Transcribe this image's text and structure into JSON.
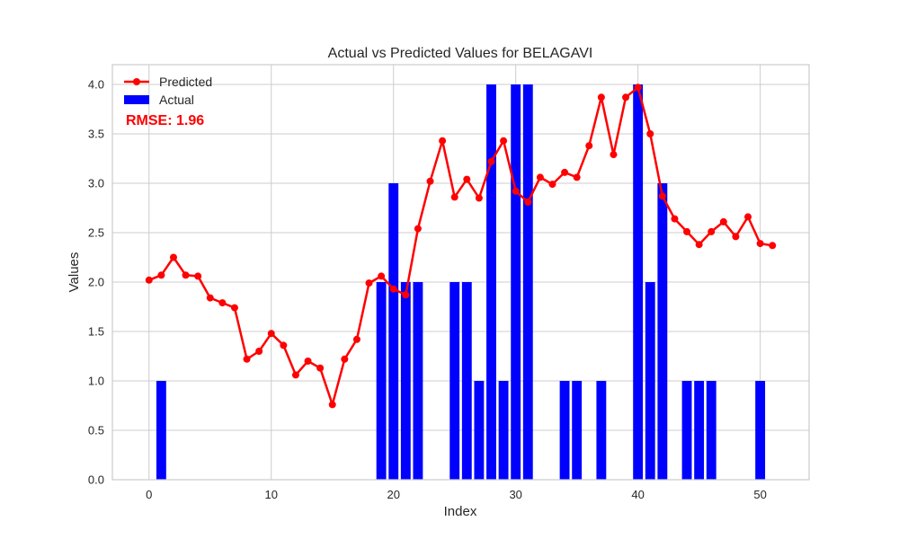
{
  "chart_data": {
    "type": "bar",
    "title": "Actual vs Predicted Values for BELAGAVI",
    "xlabel": "Index",
    "ylabel": "Values",
    "xlim": [
      -3,
      54
    ],
    "ylim": [
      0,
      4.2
    ],
    "xticks": [
      0,
      10,
      20,
      30,
      40,
      50
    ],
    "yticks": [
      0.0,
      0.5,
      1.0,
      1.5,
      2.0,
      2.5,
      3.0,
      3.5,
      4.0
    ],
    "ytick_labels": [
      "0.0",
      "0.5",
      "1.0",
      "1.5",
      "2.0",
      "2.5",
      "3.0",
      "3.5",
      "4.0"
    ],
    "grid": true,
    "legend_position": "top-left",
    "series": [
      {
        "name": "Predicted",
        "kind": "line",
        "color": "#ff0000",
        "marker": "circle",
        "x": [
          0,
          1,
          2,
          3,
          4,
          5,
          6,
          7,
          8,
          9,
          10,
          11,
          12,
          13,
          14,
          15,
          16,
          17,
          18,
          19,
          20,
          21,
          22,
          23,
          24,
          25,
          26,
          27,
          28,
          29,
          30,
          31,
          32,
          33,
          34,
          35,
          36,
          37,
          38,
          39,
          40,
          41,
          42,
          43,
          44,
          45,
          46,
          47,
          48,
          49,
          50,
          51
        ],
        "values": [
          2.02,
          2.07,
          2.25,
          2.07,
          2.06,
          1.84,
          1.79,
          1.74,
          1.22,
          1.3,
          1.48,
          1.36,
          1.06,
          1.2,
          1.13,
          0.76,
          1.22,
          1.42,
          1.99,
          2.06,
          1.93,
          1.87,
          2.54,
          3.02,
          3.43,
          2.86,
          3.04,
          2.85,
          3.22,
          3.43,
          2.92,
          2.81,
          3.06,
          2.99,
          3.11,
          3.06,
          3.38,
          3.87,
          3.29,
          3.87,
          3.97,
          3.5,
          2.87,
          2.64,
          2.51,
          2.38,
          2.51,
          2.61,
          2.46,
          2.66,
          2.39,
          2.37
        ]
      },
      {
        "name": "Actual",
        "kind": "bar",
        "color": "#0000ff",
        "x": [
          0,
          1,
          2,
          3,
          4,
          5,
          6,
          7,
          8,
          9,
          10,
          11,
          12,
          13,
          14,
          15,
          16,
          17,
          18,
          19,
          20,
          21,
          22,
          23,
          24,
          25,
          26,
          27,
          28,
          29,
          30,
          31,
          32,
          33,
          34,
          35,
          36,
          37,
          38,
          39,
          40,
          41,
          42,
          43,
          44,
          45,
          46,
          47,
          48,
          49,
          50,
          51
        ],
        "values": [
          0,
          1,
          0,
          0,
          0,
          0,
          0,
          0,
          0,
          0,
          0,
          0,
          0,
          0,
          0,
          0,
          0,
          0,
          0,
          2,
          3,
          2,
          2,
          0,
          0,
          2,
          2,
          1,
          4,
          1,
          4,
          4,
          0,
          0,
          1,
          1,
          0,
          1,
          0,
          0,
          4,
          2,
          3,
          0,
          1,
          1,
          1,
          0,
          0,
          0,
          1,
          0
        ]
      }
    ],
    "annotation": {
      "text": "RMSE: 1.96",
      "color": "#ff0000"
    }
  }
}
